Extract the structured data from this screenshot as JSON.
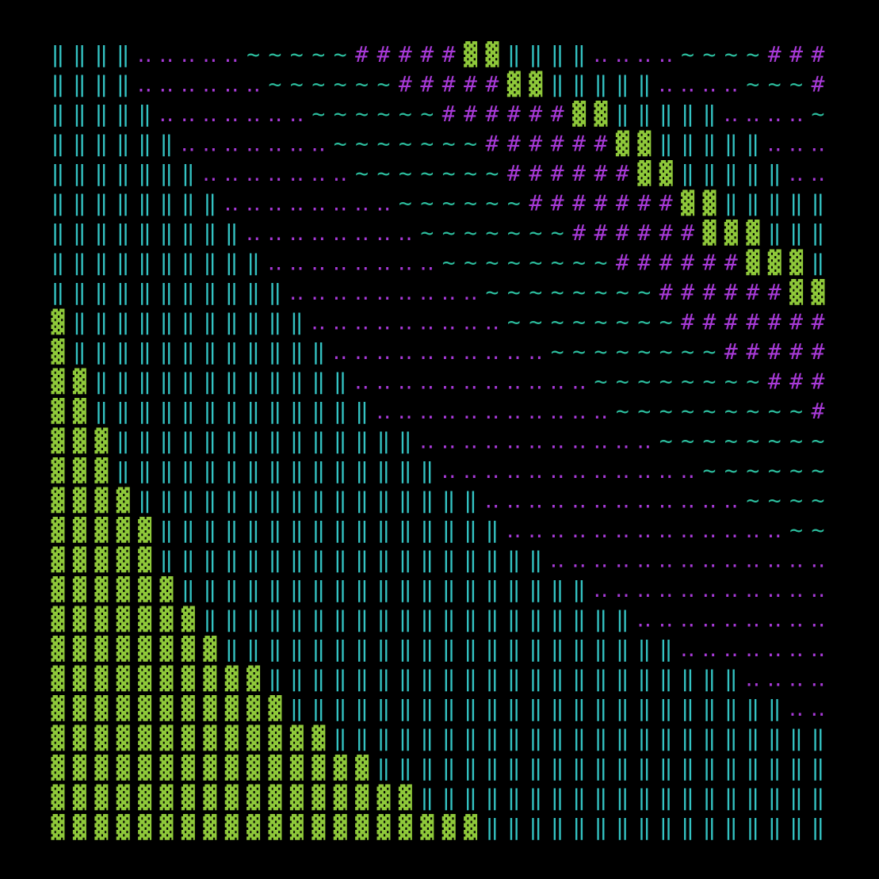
{
  "palette": {
    "▓": "#8fc93a",
    "‖": "#34c3c3",
    "‥": "#a83ad8",
    "~": "#2cbf9f",
    "#": "#a83ad8"
  },
  "rows": [
    "‖‖‖‖‥‥‥‥‥~~~~~#####▓▓‖‖‖‖‥‥‥‥~~~~###",
    "‖‖‖‖‥‥‥‥‥‥~~~~~~#####▓▓‖‖‖‖‖‥‥‥‥~~~#",
    "‖‖‖‖‖‥‥‥‥‥‥‥~~~~~~######▓▓‖‖‖‖‖‥‥‥‥~",
    "‖‖‖‖‖‖‥‥‥‥‥‥‥~~~~~~~######▓▓‖‖‖‖‖‥‥‥",
    "‖‖‖‖‖‖‖‥‥‥‥‥‥‥~~~~~~~######▓▓‖‖‖‖‖‥‥",
    "‖‖‖‖‖‖‖‖‥‥‥‥‥‥‥‥~~~~~~#######▓▓‖‖‖‖‖",
    "‖‖‖‖‖‖‖‖‖‥‥‥‥‥‥‥‥~~~~~~~######▓▓▓‖‖‖",
    "‖‖‖‖‖‖‖‖‖‖‥‥‥‥‥‥‥‥~~~~~~~~######▓▓▓‖",
    "‖‖‖‖‖‖‖‖‖‖‖‥‥‥‥‥‥‥‥‥~~~~~~~~######▓▓",
    "▓‖‖‖‖‖‖‖‖‖‖‖‥‥‥‥‥‥‥‥‥~~~~~~~~#######",
    "▓‖‖‖‖‖‖‖‖‖‖‖‖‥‥‥‥‥‥‥‥‥‥~~~~~~~~#####",
    "▓▓‖‖‖‖‖‖‖‖‖‖‖‖‥‥‥‥‥‥‥‥‥‥‥~~~~~~~~###",
    "▓▓‖‖‖‖‖‖‖‖‖‖‖‖‖‥‥‥‥‥‥‥‥‥‥‥~~~~~~~~~#",
    "▓▓▓‖‖‖‖‖‖‖‖‖‖‖‖‖‖‥‥‥‥‥‥‥‥‥‥‥~~~~~~~~",
    "▓▓▓‖‖‖‖‖‖‖‖‖‖‖‖‖‖‖‥‥‥‥‥‥‥‥‥‥‥‥~~~~~~",
    "▓▓▓▓‖‖‖‖‖‖‖‖‖‖‖‖‖‖‖‖‥‥‥‥‥‥‥‥‥‥‥‥~~~~",
    "▓▓▓▓▓‖‖‖‖‖‖‖‖‖‖‖‖‖‖‖‖‥‥‥‥‥‥‥‥‥‥‥‥‥~~",
    "▓▓▓▓▓‖‖‖‖‖‖‖‖‖‖‖‖‖‖‖‖‖‖‥‥‥‥‥‥‥‥‥‥‥‥‥",
    "▓▓▓▓▓▓‖‖‖‖‖‖‖‖‖‖‖‖‖‖‖‖‖‖‖‥‥‥‥‥‥‥‥‥‥‥",
    "▓▓▓▓▓▓▓‖‖‖‖‖‖‖‖‖‖‖‖‖‖‖‖‖‖‖‖‥‥‥‥‥‥‥‥‥",
    "▓▓▓▓▓▓▓▓‖‖‖‖‖‖‖‖‖‖‖‖‖‖‖‖‖‖‖‖‖‥‥‥‥‥‥‥",
    "▓▓▓▓▓▓▓▓▓▓‖‖‖‖‖‖‖‖‖‖‖‖‖‖‖‖‖‖‖‖‖‖‥‥‥‥",
    "▓▓▓▓▓▓▓▓▓▓▓‖‖‖‖‖‖‖‖‖‖‖‖‖‖‖‖‖‖‖‖‖‖‖‥‥",
    "▓▓▓▓▓▓▓▓▓▓▓▓▓‖‖‖‖‖‖‖‖‖‖‖‖‖‖‖‖‖‖‖‖‖‖‖",
    "▓▓▓▓▓▓▓▓▓▓▓▓▓▓▓‖‖‖‖‖‖‖‖‖‖‖‖‖‖‖‖‖‖‖‖‖",
    "▓▓▓▓▓▓▓▓▓▓▓▓▓▓▓▓▓‖‖‖‖‖‖‖‖‖‖‖‖‖‖‖‖‖‖‖",
    "▓▓▓▓▓▓▓▓▓▓▓▓▓▓▓▓▓▓▓▓‖‖‖‖‖‖‖‖‖‖‖‖‖‖‖‖"
  ]
}
